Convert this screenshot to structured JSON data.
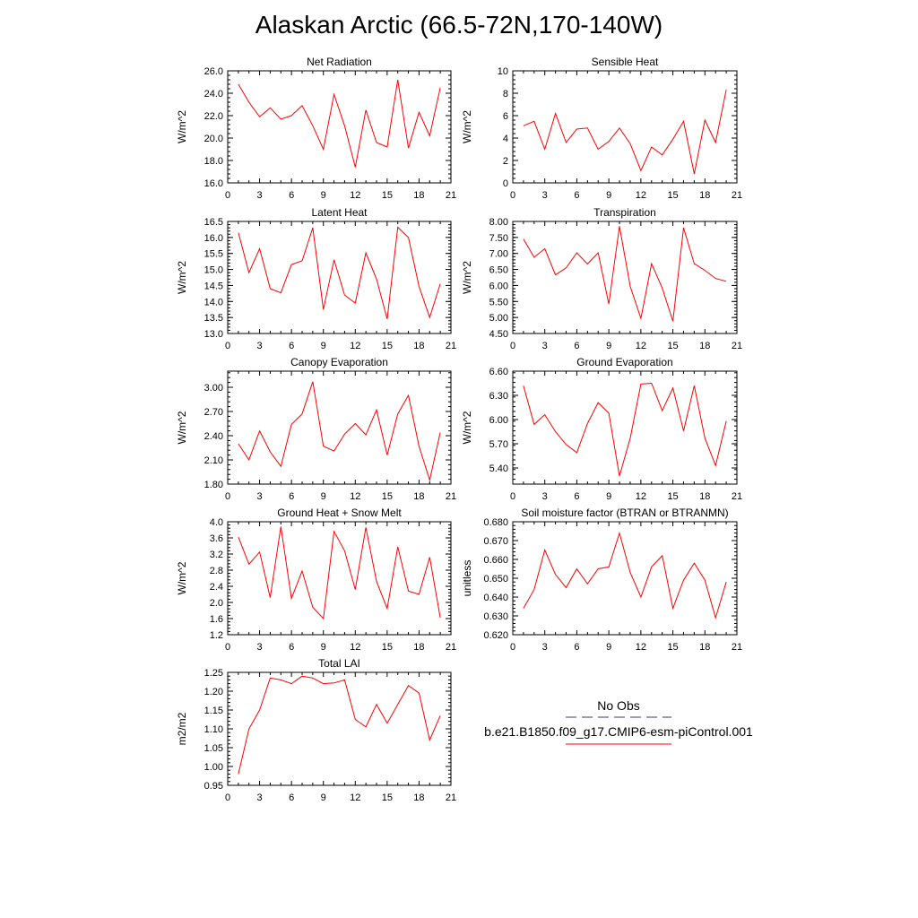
{
  "title": "Alaskan Arctic (66.5-72N,170-140W)",
  "legend": {
    "obs_label": "No Obs",
    "obs_color": "#3a3a6a",
    "model_label": "b.e21.B1850.f09_g17.CMIP6-esm-piControl.001",
    "model_color": "#ff0000"
  },
  "chart_data": [
    {
      "type": "line",
      "title": "Net Radiation",
      "ylabel": "W/m^2",
      "xlim": [
        0,
        21
      ],
      "xticks": [
        0,
        3,
        6,
        9,
        12,
        15,
        18,
        21
      ],
      "ylim": [
        16.0,
        26.0
      ],
      "yticks": [
        "16.0",
        "18.0",
        "20.0",
        "22.0",
        "24.0",
        "26.0"
      ],
      "x": [
        1,
        2,
        3,
        4,
        5,
        6,
        7,
        8,
        9,
        10,
        11,
        12,
        13,
        14,
        15,
        16,
        17,
        18,
        19,
        20
      ],
      "series": [
        {
          "values": [
            24.8,
            23.2,
            21.9,
            22.7,
            21.7,
            22.0,
            22.9,
            21.1,
            19.0,
            23.9,
            21.1,
            17.4,
            22.5,
            19.6,
            19.2,
            25.2,
            19.1,
            22.3,
            20.2,
            24.5
          ]
        }
      ]
    },
    {
      "type": "line",
      "title": "Sensible Heat",
      "ylabel": "W/m^2",
      "xlim": [
        0,
        21
      ],
      "xticks": [
        0,
        3,
        6,
        9,
        12,
        15,
        18,
        21
      ],
      "ylim": [
        0,
        10
      ],
      "yticks": [
        "0",
        "2",
        "4",
        "6",
        "8",
        "10"
      ],
      "x": [
        1,
        2,
        3,
        4,
        5,
        6,
        7,
        8,
        9,
        10,
        11,
        12,
        13,
        14,
        15,
        16,
        17,
        18,
        19,
        20
      ],
      "series": [
        {
          "values": [
            5.1,
            5.5,
            3.0,
            6.2,
            3.6,
            4.8,
            4.9,
            3.0,
            3.7,
            4.9,
            3.5,
            1.1,
            3.2,
            2.5,
            3.9,
            5.5,
            0.8,
            5.6,
            3.6,
            8.3
          ]
        }
      ]
    },
    {
      "type": "line",
      "title": "Latent Heat",
      "ylabel": "W/m^2",
      "xlim": [
        0,
        21
      ],
      "xticks": [
        0,
        3,
        6,
        9,
        12,
        15,
        18,
        21
      ],
      "ylim": [
        13.0,
        16.5
      ],
      "yticks": [
        "13.0",
        "13.5",
        "14.0",
        "14.5",
        "15.0",
        "15.5",
        "16.0",
        "16.5"
      ],
      "x": [
        1,
        2,
        3,
        4,
        5,
        6,
        7,
        8,
        9,
        10,
        11,
        12,
        13,
        14,
        15,
        16,
        17,
        18,
        19,
        20
      ],
      "series": [
        {
          "values": [
            16.15,
            14.9,
            15.65,
            14.4,
            14.27,
            15.15,
            15.27,
            16.3,
            13.75,
            15.3,
            14.2,
            13.95,
            15.52,
            14.7,
            13.45,
            16.32,
            16.0,
            14.47,
            13.5,
            14.55
          ]
        }
      ]
    },
    {
      "type": "line",
      "title": "Transpiration",
      "ylabel": "W/m^2",
      "xlim": [
        0,
        21
      ],
      "xticks": [
        0,
        3,
        6,
        9,
        12,
        15,
        18,
        21
      ],
      "ylim": [
        4.5,
        8.0
      ],
      "yticks": [
        "4.50",
        "5.00",
        "5.50",
        "6.00",
        "6.50",
        "7.00",
        "7.50",
        "8.00"
      ],
      "x": [
        1,
        2,
        3,
        4,
        5,
        6,
        7,
        8,
        9,
        10,
        11,
        12,
        13,
        14,
        15,
        16,
        17,
        18,
        19,
        20
      ],
      "series": [
        {
          "values": [
            7.45,
            6.88,
            7.15,
            6.33,
            6.55,
            7.02,
            6.67,
            7.02,
            5.42,
            7.85,
            5.97,
            4.97,
            6.68,
            5.92,
            4.88,
            7.8,
            6.68,
            6.47,
            6.22,
            6.13
          ]
        }
      ]
    },
    {
      "type": "line",
      "title": "Canopy Evaporation",
      "ylabel": "W/m^2",
      "xlim": [
        0,
        21
      ],
      "xticks": [
        0,
        3,
        6,
        9,
        12,
        15,
        18,
        21
      ],
      "ylim": [
        1.8,
        3.2
      ],
      "yticks": [
        "1.80",
        "2.10",
        "2.40",
        "2.70",
        "3.00"
      ],
      "ytick_values": [
        1.8,
        2.1,
        2.4,
        2.7,
        3.0
      ],
      "x": [
        1,
        2,
        3,
        4,
        5,
        6,
        7,
        8,
        9,
        10,
        11,
        12,
        13,
        14,
        15,
        16,
        17,
        18,
        19,
        20
      ],
      "series": [
        {
          "values": [
            2.3,
            2.1,
            2.46,
            2.2,
            2.02,
            2.54,
            2.67,
            3.07,
            2.27,
            2.21,
            2.42,
            2.55,
            2.41,
            2.72,
            2.16,
            2.67,
            2.9,
            2.27,
            1.85,
            2.44
          ]
        }
      ]
    },
    {
      "type": "line",
      "title": "Ground Evaporation",
      "ylabel": "W/m^2",
      "xlim": [
        0,
        21
      ],
      "xticks": [
        0,
        3,
        6,
        9,
        12,
        15,
        18,
        21
      ],
      "ylim": [
        5.2,
        6.6
      ],
      "yticks": [
        "5.40",
        "5.70",
        "6.00",
        "6.30",
        "6.60"
      ],
      "ytick_values": [
        5.4,
        5.7,
        6.0,
        6.3,
        6.6
      ],
      "x": [
        1,
        2,
        3,
        4,
        5,
        6,
        7,
        8,
        9,
        10,
        11,
        12,
        13,
        14,
        15,
        16,
        17,
        18,
        19,
        20
      ],
      "series": [
        {
          "values": [
            6.42,
            5.94,
            6.06,
            5.85,
            5.69,
            5.59,
            5.95,
            6.21,
            6.08,
            5.3,
            5.77,
            6.44,
            6.45,
            6.11,
            6.39,
            5.86,
            6.42,
            5.77,
            5.43,
            5.98
          ]
        }
      ]
    },
    {
      "type": "line",
      "title": "Ground Heat + Snow Melt",
      "ylabel": "W/m^2",
      "xlim": [
        0,
        21
      ],
      "xticks": [
        0,
        3,
        6,
        9,
        12,
        15,
        18,
        21
      ],
      "ylim": [
        1.2,
        4.0
      ],
      "yticks": [
        "1.2",
        "1.6",
        "2.0",
        "2.4",
        "2.8",
        "3.2",
        "3.6",
        "4.0"
      ],
      "x": [
        1,
        2,
        3,
        4,
        5,
        6,
        7,
        8,
        9,
        10,
        11,
        12,
        13,
        14,
        15,
        16,
        17,
        18,
        19,
        20
      ],
      "series": [
        {
          "values": [
            3.62,
            2.95,
            3.25,
            2.12,
            3.88,
            2.1,
            2.78,
            1.88,
            1.6,
            3.76,
            3.28,
            2.32,
            3.86,
            2.52,
            1.85,
            3.38,
            2.28,
            2.2,
            3.12,
            1.62
          ]
        }
      ]
    },
    {
      "type": "line",
      "title": "Soil moisture factor (BTRAN or BTRANMN)",
      "ylabel": "unitless",
      "xlim": [
        0,
        21
      ],
      "xticks": [
        0,
        3,
        6,
        9,
        12,
        15,
        18,
        21
      ],
      "ylim": [
        0.62,
        0.68
      ],
      "yticks": [
        "0.620",
        "0.630",
        "0.640",
        "0.650",
        "0.660",
        "0.670",
        "0.680"
      ],
      "x": [
        1,
        2,
        3,
        4,
        5,
        6,
        7,
        8,
        9,
        10,
        11,
        12,
        13,
        14,
        15,
        16,
        17,
        18,
        19,
        20
      ],
      "series": [
        {
          "values": [
            0.634,
            0.644,
            0.665,
            0.652,
            0.645,
            0.655,
            0.647,
            0.655,
            0.656,
            0.674,
            0.653,
            0.64,
            0.656,
            0.662,
            0.634,
            0.649,
            0.658,
            0.649,
            0.629,
            0.648
          ]
        }
      ]
    },
    {
      "type": "line",
      "title": "Total LAI",
      "ylabel": "m2/m2",
      "xlim": [
        0,
        21
      ],
      "xticks": [
        0,
        3,
        6,
        9,
        12,
        15,
        18,
        21
      ],
      "ylim": [
        0.95,
        1.25
      ],
      "yticks": [
        "0.95",
        "1.00",
        "1.05",
        "1.10",
        "1.15",
        "1.20",
        "1.25"
      ],
      "x": [
        1,
        2,
        3,
        4,
        5,
        6,
        7,
        8,
        9,
        10,
        11,
        12,
        13,
        14,
        15,
        16,
        17,
        18,
        19,
        20
      ],
      "series": [
        {
          "values": [
            0.98,
            1.1,
            1.15,
            1.235,
            1.23,
            1.22,
            1.24,
            1.235,
            1.22,
            1.222,
            1.23,
            1.125,
            1.105,
            1.165,
            1.115,
            1.165,
            1.215,
            1.195,
            1.07,
            1.135
          ]
        }
      ]
    }
  ]
}
